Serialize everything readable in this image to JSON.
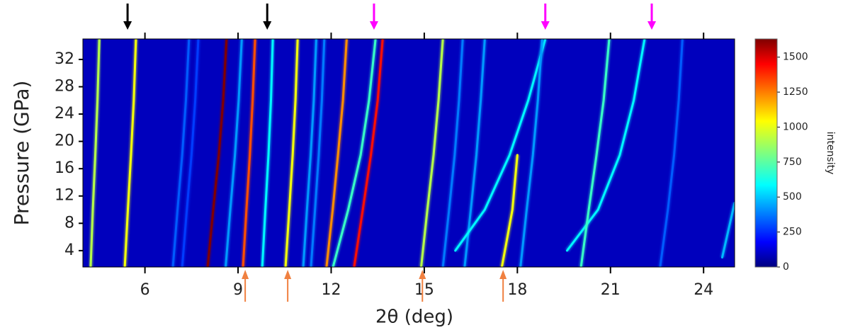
{
  "chart_data": {
    "type": "heatmap",
    "xlabel": "2θ (deg)",
    "ylabel": "Pressure (GPa)",
    "colorbar_label": "intensity",
    "colormap": "jet",
    "xlim": [
      4,
      25
    ],
    "ylim": [
      1.6,
      35
    ],
    "clim": [
      0,
      1630
    ],
    "xticks": [
      6,
      9,
      12,
      15,
      18,
      21,
      24
    ],
    "yticks": [
      4,
      8,
      12,
      16,
      20,
      24,
      28,
      32
    ],
    "cticks": [
      0,
      250,
      500,
      750,
      1000,
      1250,
      1500
    ],
    "traces": [
      {
        "x": [
          4.25,
          4.32,
          4.4,
          4.47,
          4.53
        ],
        "y": [
          1.6,
          10,
          18,
          26,
          35
        ],
        "intensity": 900
      },
      {
        "x": [
          5.35,
          5.45,
          5.55,
          5.64,
          5.71
        ],
        "y": [
          1.6,
          10,
          18,
          26,
          35
        ],
        "intensity": 1000
      },
      {
        "x": [
          6.9,
          7.05,
          7.2,
          7.32,
          7.42
        ],
        "y": [
          1.6,
          10,
          18,
          26,
          35
        ],
        "intensity": 350
      },
      {
        "x": [
          7.2,
          7.35,
          7.5,
          7.62,
          7.72
        ],
        "y": [
          1.6,
          10,
          18,
          26,
          35
        ],
        "intensity": 300
      },
      {
        "x": [
          8.02,
          8.2,
          8.38,
          8.52,
          8.63
        ],
        "y": [
          1.6,
          10,
          18,
          26,
          35
        ],
        "intensity": 1630
      },
      {
        "x": [
          8.6,
          8.75,
          8.9,
          9.02,
          9.12
        ],
        "y": [
          1.6,
          10,
          18,
          26,
          35
        ],
        "intensity": 450
      },
      {
        "x": [
          9.16,
          9.27,
          9.38,
          9.47,
          9.55
        ],
        "y": [
          1.6,
          10,
          18,
          26,
          35
        ],
        "intensity": 1300
      },
      {
        "x": [
          9.78,
          9.88,
          9.98,
          10.06,
          10.12
        ],
        "y": [
          1.6,
          10,
          18,
          26,
          35
        ],
        "intensity": 600
      },
      {
        "x": [
          10.53,
          10.65,
          10.76,
          10.85,
          10.92
        ],
        "y": [
          1.6,
          10,
          18,
          26,
          35
        ],
        "intensity": 1000
      },
      {
        "x": [
          11.1,
          11.22,
          11.34,
          11.44,
          11.52
        ],
        "y": [
          1.6,
          10,
          18,
          26,
          35
        ],
        "intensity": 450
      },
      {
        "x": [
          11.35,
          11.48,
          11.6,
          11.7,
          11.78
        ],
        "y": [
          1.6,
          10,
          18,
          26,
          35
        ],
        "intensity": 400
      },
      {
        "x": [
          11.85,
          12.05,
          12.22,
          12.38,
          12.5
        ],
        "y": [
          1.6,
          10,
          18,
          26,
          35
        ],
        "intensity": 1200
      },
      {
        "x": [
          12.06,
          12.55,
          12.95,
          13.22,
          13.43
        ],
        "y": [
          1.6,
          10,
          18,
          26,
          35
        ],
        "intensity": 700
      },
      {
        "x": [
          12.74,
          13.02,
          13.28,
          13.5,
          13.66
        ],
        "y": [
          1.6,
          10,
          18,
          26,
          35
        ],
        "intensity": 1400
      },
      {
        "x": [
          14.9,
          15.1,
          15.3,
          15.46,
          15.6
        ],
        "y": [
          1.6,
          10,
          18,
          26,
          35
        ],
        "intensity": 900
      },
      {
        "x": [
          15.6,
          15.8,
          15.98,
          16.12,
          16.24
        ],
        "y": [
          1.6,
          10,
          18,
          26,
          35
        ],
        "intensity": 400
      },
      {
        "x": [
          16.3,
          16.5,
          16.68,
          16.82,
          16.95
        ],
        "y": [
          1.6,
          10,
          18,
          26,
          35
        ],
        "intensity": 450
      },
      {
        "x": [
          16.0,
          16.95,
          17.75,
          18.35,
          18.9
        ],
        "y": [
          4,
          10,
          18,
          26,
          35
        ],
        "intensity": 600
      },
      {
        "x": [
          17.5,
          17.68,
          17.84,
          18.0,
          null
        ],
        "y": [
          1.6,
          6,
          10,
          18,
          35
        ],
        "intensity": 1000
      },
      {
        "x": [
          18.1,
          18.3,
          18.5,
          18.66,
          18.8
        ],
        "y": [
          1.6,
          10,
          18,
          26,
          35
        ],
        "intensity": 450
      },
      {
        "x": [
          19.6,
          20.6,
          21.3,
          21.75,
          22.1
        ],
        "y": [
          4,
          10,
          18,
          26,
          35
        ],
        "intensity": 600
      },
      {
        "x": [
          20.05,
          20.3,
          20.55,
          20.78,
          20.96
        ],
        "y": [
          1.6,
          10,
          18,
          26,
          35
        ],
        "intensity": 700
      },
      {
        "x": [
          22.6,
          22.85,
          23.05,
          23.2,
          23.32
        ],
        "y": [
          1.6,
          10,
          18,
          26,
          35
        ],
        "intensity": 350
      },
      {
        "x": [
          24.6,
          24.85,
          25.0,
          null,
          null
        ],
        "y": [
          3,
          8,
          11,
          26,
          35
        ],
        "intensity": 500
      }
    ],
    "markers": [
      {
        "x": 5.44,
        "color": "#000000",
        "side": "top"
      },
      {
        "x": 9.94,
        "color": "#000000",
        "side": "top"
      },
      {
        "x": 13.38,
        "color": "#ff00ff",
        "side": "top"
      },
      {
        "x": 18.9,
        "color": "#ff00ff",
        "side": "top"
      },
      {
        "x": 22.33,
        "color": "#ff00ff",
        "side": "top"
      },
      {
        "x": 9.23,
        "color": "#f08040",
        "side": "bottom"
      },
      {
        "x": 10.6,
        "color": "#f08040",
        "side": "bottom"
      },
      {
        "x": 14.94,
        "color": "#f08040",
        "side": "bottom"
      },
      {
        "x": 17.54,
        "color": "#f08040",
        "side": "bottom"
      }
    ]
  }
}
